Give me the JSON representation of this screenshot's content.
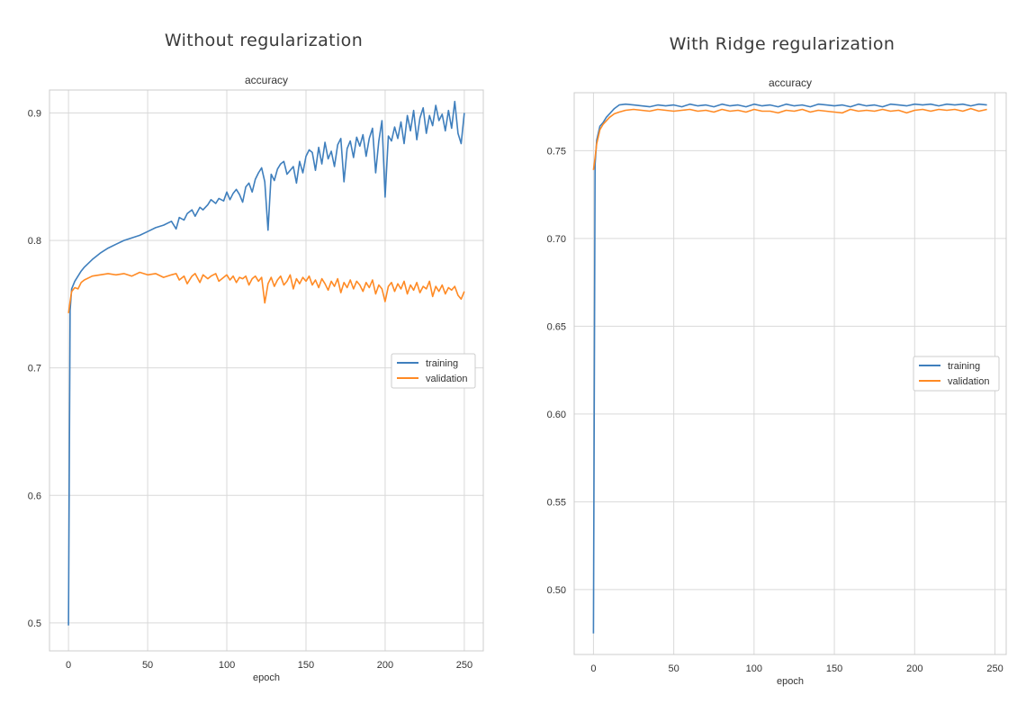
{
  "figure": {
    "left_title": "Without regularization",
    "right_title": "With Ridge regularization"
  },
  "colors": {
    "training": "#3f7fbd",
    "validation": "#ff8a24",
    "grid": "#d9d9d9",
    "text": "#333333"
  },
  "chart_data": [
    {
      "type": "line",
      "title": "accuracy",
      "xlabel": "epoch",
      "ylabel": "",
      "xlim": [
        -12,
        262
      ],
      "ylim": [
        0.478,
        0.918
      ],
      "xticks": [
        0,
        50,
        100,
        150,
        200,
        250
      ],
      "xtick_labels": [
        "0",
        "50",
        "100",
        "150",
        "200",
        "250"
      ],
      "yticks": [
        0.5,
        0.6,
        0.7,
        0.8,
        0.9
      ],
      "ytick_labels": [
        "0.5",
        "0.6",
        "0.7",
        "0.8",
        "0.9"
      ],
      "grid": true,
      "legend": {
        "placement": "center-right",
        "entries": [
          "training",
          "validation"
        ]
      },
      "series": [
        {
          "name": "training",
          "x": [
            0,
            1,
            2,
            4,
            6,
            8,
            10,
            15,
            20,
            25,
            30,
            35,
            40,
            45,
            50,
            55,
            60,
            65,
            68,
            70,
            73,
            75,
            78,
            80,
            83,
            85,
            88,
            90,
            93,
            95,
            98,
            100,
            102,
            104,
            106,
            108,
            110,
            112,
            114,
            116,
            118,
            120,
            122,
            124,
            126,
            128,
            130,
            132,
            134,
            136,
            138,
            140,
            142,
            144,
            146,
            148,
            150,
            152,
            154,
            156,
            158,
            160,
            162,
            164,
            166,
            168,
            170,
            172,
            174,
            176,
            178,
            180,
            182,
            184,
            186,
            188,
            190,
            192,
            194,
            196,
            198,
            200,
            202,
            204,
            206,
            208,
            210,
            212,
            214,
            216,
            218,
            220,
            222,
            224,
            226,
            228,
            230,
            232,
            234,
            236,
            238,
            240,
            242,
            244,
            246,
            248,
            250
          ],
          "values": [
            0.498,
            0.745,
            0.762,
            0.768,
            0.772,
            0.776,
            0.779,
            0.785,
            0.79,
            0.794,
            0.797,
            0.8,
            0.802,
            0.804,
            0.807,
            0.81,
            0.812,
            0.815,
            0.809,
            0.818,
            0.816,
            0.821,
            0.824,
            0.819,
            0.826,
            0.824,
            0.828,
            0.832,
            0.829,
            0.833,
            0.831,
            0.838,
            0.832,
            0.837,
            0.84,
            0.836,
            0.83,
            0.842,
            0.845,
            0.838,
            0.848,
            0.853,
            0.857,
            0.846,
            0.808,
            0.852,
            0.847,
            0.856,
            0.86,
            0.862,
            0.852,
            0.855,
            0.858,
            0.845,
            0.862,
            0.853,
            0.866,
            0.871,
            0.869,
            0.855,
            0.873,
            0.86,
            0.877,
            0.864,
            0.87,
            0.858,
            0.875,
            0.88,
            0.846,
            0.872,
            0.878,
            0.865,
            0.881,
            0.874,
            0.883,
            0.866,
            0.88,
            0.888,
            0.853,
            0.878,
            0.894,
            0.834,
            0.882,
            0.878,
            0.889,
            0.88,
            0.893,
            0.876,
            0.898,
            0.886,
            0.902,
            0.879,
            0.896,
            0.904,
            0.884,
            0.898,
            0.89,
            0.906,
            0.894,
            0.899,
            0.886,
            0.902,
            0.888,
            0.909,
            0.884,
            0.876,
            0.9
          ]
        },
        {
          "name": "validation",
          "x": [
            0,
            1,
            2,
            4,
            6,
            8,
            10,
            15,
            20,
            25,
            30,
            35,
            40,
            45,
            50,
            55,
            60,
            65,
            68,
            70,
            73,
            75,
            78,
            80,
            83,
            85,
            88,
            90,
            93,
            95,
            98,
            100,
            102,
            104,
            106,
            108,
            110,
            112,
            114,
            116,
            118,
            120,
            122,
            124,
            126,
            128,
            130,
            132,
            134,
            136,
            138,
            140,
            142,
            144,
            146,
            148,
            150,
            152,
            154,
            156,
            158,
            160,
            162,
            164,
            166,
            168,
            170,
            172,
            174,
            176,
            178,
            180,
            182,
            184,
            186,
            188,
            190,
            192,
            194,
            196,
            198,
            200,
            202,
            204,
            206,
            208,
            210,
            212,
            214,
            216,
            218,
            220,
            222,
            224,
            226,
            228,
            230,
            232,
            234,
            236,
            238,
            240,
            242,
            244,
            246,
            248,
            250
          ],
          "values": [
            0.743,
            0.752,
            0.76,
            0.763,
            0.762,
            0.767,
            0.769,
            0.772,
            0.773,
            0.774,
            0.773,
            0.774,
            0.772,
            0.775,
            0.773,
            0.774,
            0.771,
            0.773,
            0.774,
            0.769,
            0.772,
            0.766,
            0.772,
            0.774,
            0.767,
            0.773,
            0.77,
            0.772,
            0.774,
            0.768,
            0.771,
            0.773,
            0.769,
            0.772,
            0.767,
            0.771,
            0.77,
            0.772,
            0.765,
            0.77,
            0.772,
            0.768,
            0.771,
            0.751,
            0.766,
            0.771,
            0.764,
            0.769,
            0.772,
            0.765,
            0.768,
            0.773,
            0.762,
            0.77,
            0.766,
            0.771,
            0.768,
            0.772,
            0.765,
            0.769,
            0.763,
            0.77,
            0.766,
            0.761,
            0.768,
            0.764,
            0.77,
            0.759,
            0.767,
            0.763,
            0.769,
            0.762,
            0.768,
            0.765,
            0.76,
            0.767,
            0.763,
            0.769,
            0.758,
            0.765,
            0.762,
            0.752,
            0.764,
            0.767,
            0.76,
            0.766,
            0.762,
            0.768,
            0.758,
            0.765,
            0.761,
            0.767,
            0.759,
            0.764,
            0.762,
            0.768,
            0.756,
            0.764,
            0.76,
            0.765,
            0.758,
            0.763,
            0.761,
            0.764,
            0.757,
            0.754,
            0.76
          ]
        }
      ]
    },
    {
      "type": "line",
      "title": "accuracy",
      "xlabel": "epoch",
      "ylabel": "",
      "xlim": [
        -12,
        257
      ],
      "ylim": [
        0.463,
        0.783
      ],
      "xticks": [
        0,
        50,
        100,
        150,
        200,
        250
      ],
      "xtick_labels": [
        "0",
        "50",
        "100",
        "150",
        "200",
        "250"
      ],
      "yticks": [
        0.5,
        0.55,
        0.6,
        0.65,
        0.7,
        0.75
      ],
      "ytick_labels": [
        "0.50",
        "0.55",
        "0.60",
        "0.65",
        "0.70",
        "0.75"
      ],
      "grid": true,
      "legend": {
        "placement": "center-right",
        "entries": [
          "training",
          "validation"
        ]
      },
      "series": [
        {
          "name": "training",
          "x": [
            0,
            1,
            2,
            4,
            6,
            8,
            10,
            13,
            16,
            20,
            25,
            30,
            35,
            40,
            45,
            50,
            55,
            60,
            65,
            70,
            75,
            80,
            85,
            90,
            95,
            100,
            105,
            110,
            115,
            120,
            125,
            130,
            135,
            140,
            145,
            150,
            155,
            160,
            165,
            170,
            175,
            180,
            185,
            190,
            195,
            200,
            205,
            210,
            215,
            220,
            225,
            230,
            235,
            240,
            245
          ],
          "values": [
            0.475,
            0.742,
            0.756,
            0.764,
            0.766,
            0.769,
            0.771,
            0.774,
            0.776,
            0.7765,
            0.776,
            0.7755,
            0.775,
            0.776,
            0.7755,
            0.776,
            0.775,
            0.7765,
            0.7755,
            0.776,
            0.775,
            0.7765,
            0.7755,
            0.776,
            0.775,
            0.7765,
            0.7755,
            0.776,
            0.775,
            0.7765,
            0.7755,
            0.776,
            0.775,
            0.7765,
            0.776,
            0.7755,
            0.776,
            0.775,
            0.7765,
            0.7755,
            0.776,
            0.775,
            0.7765,
            0.776,
            0.7755,
            0.7765,
            0.776,
            0.7765,
            0.7755,
            0.7765,
            0.776,
            0.7765,
            0.7755,
            0.7765,
            0.776
          ]
        },
        {
          "name": "validation",
          "x": [
            0,
            1,
            2,
            4,
            6,
            8,
            10,
            13,
            16,
            20,
            25,
            30,
            35,
            40,
            45,
            50,
            55,
            60,
            65,
            70,
            75,
            80,
            85,
            90,
            95,
            100,
            105,
            110,
            115,
            120,
            125,
            130,
            135,
            140,
            145,
            150,
            155,
            160,
            165,
            170,
            175,
            180,
            185,
            190,
            195,
            200,
            205,
            210,
            215,
            220,
            225,
            230,
            235,
            240,
            245
          ],
          "values": [
            0.739,
            0.746,
            0.754,
            0.762,
            0.765,
            0.767,
            0.769,
            0.771,
            0.772,
            0.773,
            0.7735,
            0.773,
            0.7725,
            0.7735,
            0.773,
            0.7725,
            0.773,
            0.7735,
            0.7725,
            0.773,
            0.772,
            0.7735,
            0.7725,
            0.773,
            0.772,
            0.7735,
            0.7725,
            0.7725,
            0.7715,
            0.773,
            0.7725,
            0.7735,
            0.772,
            0.773,
            0.7725,
            0.772,
            0.7715,
            0.7735,
            0.7725,
            0.773,
            0.7725,
            0.7735,
            0.7725,
            0.773,
            0.7715,
            0.773,
            0.7735,
            0.7725,
            0.7735,
            0.773,
            0.7735,
            0.7725,
            0.774,
            0.7725,
            0.7735
          ]
        }
      ]
    }
  ]
}
